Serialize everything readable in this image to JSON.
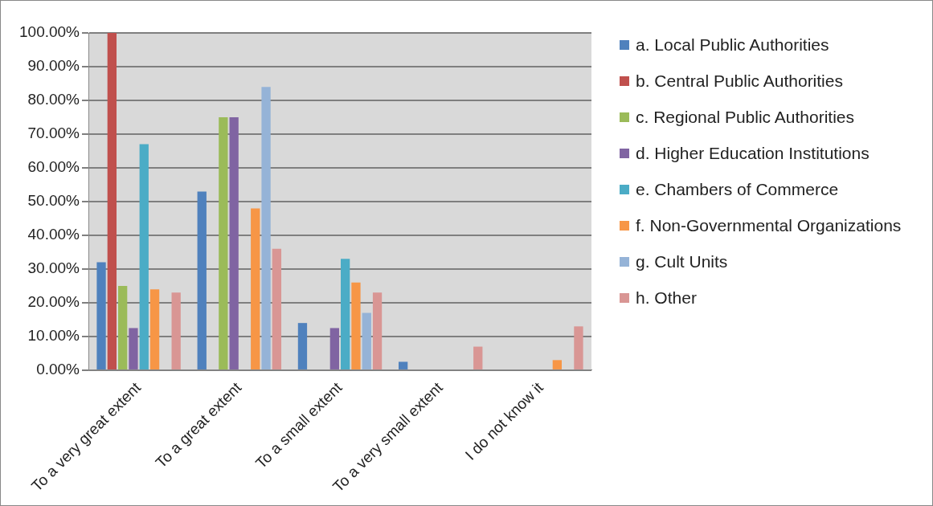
{
  "chart_data": {
    "type": "bar",
    "categories": [
      "To a very great extent",
      "To a great extent",
      "To a small extent",
      "To a very small extent",
      "I do not know it"
    ],
    "series": [
      {
        "name": "a. Local Public Authorities",
        "color": "#4f81bd",
        "values": [
          32,
          53,
          14,
          2.5,
          0
        ]
      },
      {
        "name": "b. Central Public Authorities",
        "color": "#c0504d",
        "values": [
          100,
          0,
          0,
          0,
          0
        ]
      },
      {
        "name": "c. Regional Public Authorities",
        "color": "#9bbb59",
        "values": [
          25,
          75,
          0,
          0,
          0
        ]
      },
      {
        "name": "d. Higher Education Institutions",
        "color": "#8064a2",
        "values": [
          12.5,
          75,
          12.5,
          0,
          0
        ]
      },
      {
        "name": "e. Chambers of Commerce",
        "color": "#4bacc6",
        "values": [
          67,
          0,
          33,
          0,
          0
        ]
      },
      {
        "name": "f. Non-Governmental Organizations",
        "color": "#f79646",
        "values": [
          24,
          48,
          26,
          0,
          3
        ]
      },
      {
        "name": "g. Cult Units",
        "color": "#95b3d7",
        "values": [
          0,
          84,
          17,
          0,
          0
        ]
      },
      {
        "name": "h. Other",
        "color": "#d99694",
        "values": [
          23,
          36,
          23,
          7,
          13
        ]
      }
    ],
    "ylim": [
      0,
      100
    ],
    "yticks": [
      {
        "value": 0,
        "label": "0.00%"
      },
      {
        "value": 10,
        "label": "10.00%"
      },
      {
        "value": 20,
        "label": "20.00%"
      },
      {
        "value": 30,
        "label": "30.00%"
      },
      {
        "value": 40,
        "label": "40.00%"
      },
      {
        "value": 50,
        "label": "50.00%"
      },
      {
        "value": 60,
        "label": "60.00%"
      },
      {
        "value": 70,
        "label": "70.00%"
      },
      {
        "value": 80,
        "label": "80.00%"
      },
      {
        "value": 90,
        "label": "90.00%"
      },
      {
        "value": 100,
        "label": "100.00%"
      }
    ],
    "grid": "y",
    "legend": "right"
  }
}
